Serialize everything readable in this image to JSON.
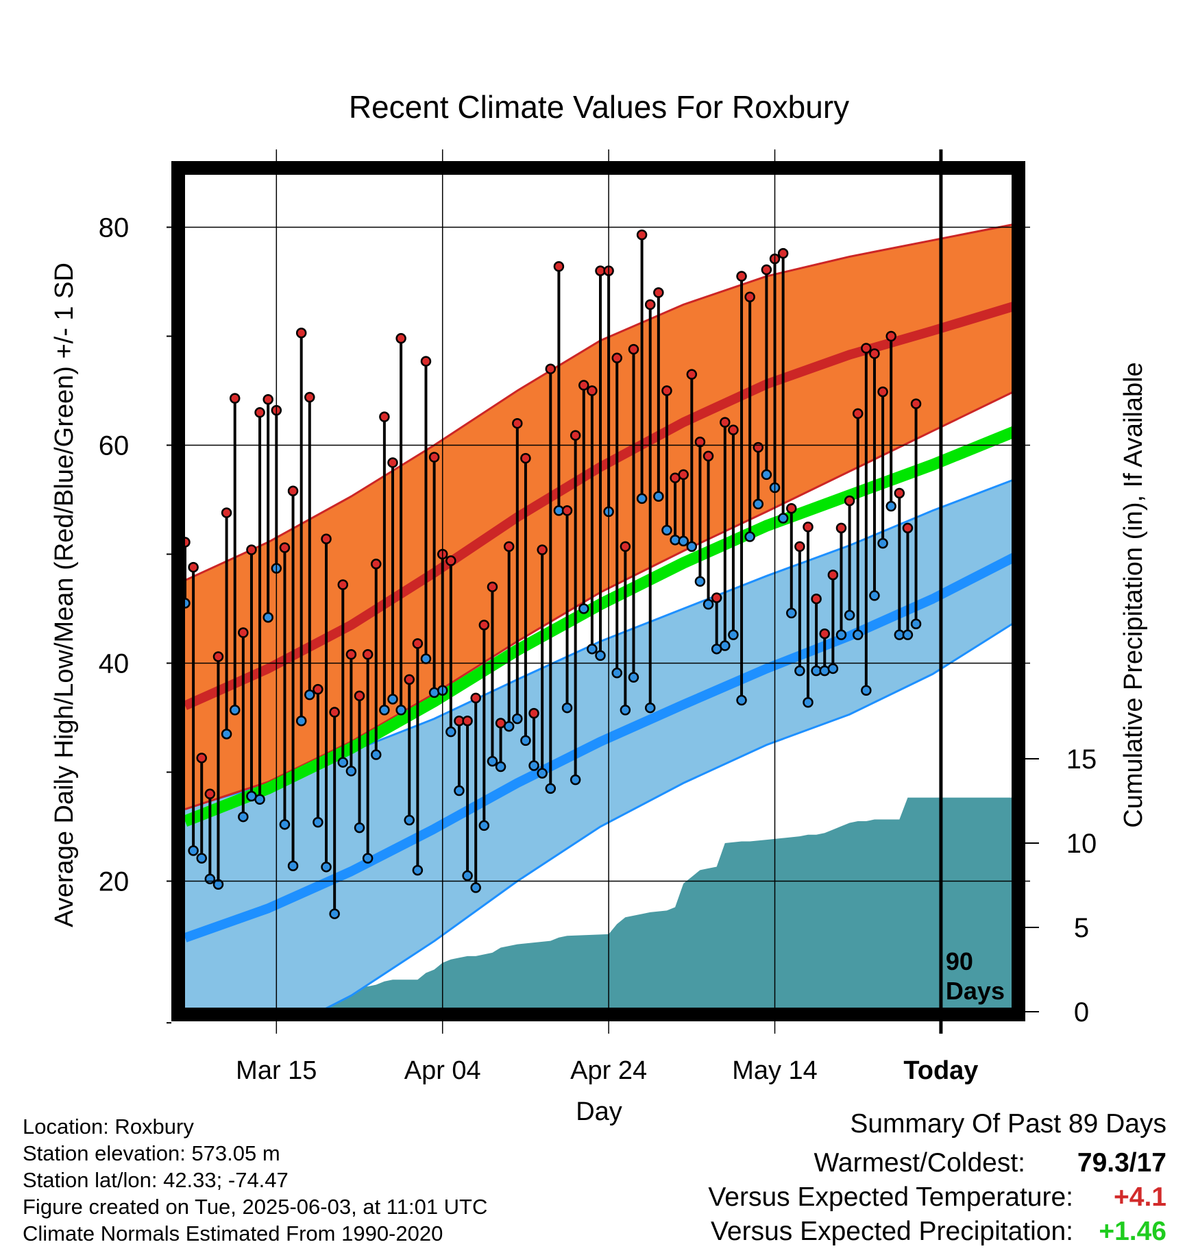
{
  "chart_data": {
    "type": "line",
    "title": "Recent Climate Values For Roxbury",
    "xlabel": "Day",
    "ylabel": "Average Daily High/Low/Mean (Red/Blue/Green) +/- 1 SD",
    "y2label": "Cumulative Precipitation (in), If Available",
    "xlim": [
      0,
      89
    ],
    "ylim": [
      7,
      85
    ],
    "y2lim": [
      0,
      15
    ],
    "x_ticks": [
      {
        "day": 11,
        "label": "Mar 15"
      },
      {
        "day": 31,
        "label": "Apr 04"
      },
      {
        "day": 51,
        "label": "Apr 24"
      },
      {
        "day": 71,
        "label": "May 14"
      },
      {
        "day": 91,
        "label": "Today",
        "bold": true
      }
    ],
    "y_ticks": [
      20,
      40,
      60,
      80
    ],
    "y2_ticks": [
      0,
      5,
      10,
      15
    ],
    "today_day": 91,
    "today_label": [
      "90",
      "Days"
    ],
    "normals": {
      "days": [
        0,
        10,
        20,
        30,
        40,
        50,
        60,
        70,
        80,
        90,
        100
      ],
      "high_mean": [
        36.1,
        39.5,
        43.5,
        48.3,
        53.4,
        58.0,
        62.1,
        65.6,
        68.3,
        70.5,
        72.8
      ],
      "high_plus_sd": [
        47.6,
        51.1,
        55.3,
        60.0,
        65.0,
        69.6,
        72.9,
        75.5,
        77.3,
        78.8,
        80.3
      ],
      "high_minus_sd": [
        26.6,
        29.1,
        32.8,
        37.2,
        42.0,
        46.5,
        50.3,
        53.9,
        57.6,
        61.3,
        65.0
      ],
      "low_mean": [
        14.8,
        17.5,
        20.9,
        24.8,
        29.0,
        32.8,
        36.2,
        39.5,
        42.5,
        45.9,
        49.8
      ],
      "low_plus_sd": [
        26.7,
        28.9,
        31.9,
        34.9,
        38.5,
        42.0,
        45.0,
        48.0,
        50.8,
        54.0,
        56.9
      ],
      "low_minus_sd": [
        2.2,
        5.6,
        9.5,
        14.5,
        20.0,
        25.0,
        29.0,
        32.5,
        35.3,
        39.0,
        43.8
      ],
      "avg_mean": [
        25.5,
        28.5,
        32.2,
        36.5,
        41.2,
        45.4,
        49.2,
        52.6,
        55.4,
        58.2,
        61.3
      ]
    },
    "observed": {
      "days": [
        0,
        1,
        2,
        3,
        4,
        5,
        6,
        7,
        8,
        9,
        10,
        11,
        12,
        13,
        14,
        15,
        16,
        17,
        18,
        19,
        20,
        21,
        22,
        23,
        24,
        25,
        26,
        27,
        28,
        29,
        30,
        31,
        32,
        33,
        34,
        35,
        36,
        37,
        38,
        39,
        40,
        41,
        42,
        43,
        44,
        45,
        46,
        47,
        48,
        49,
        50,
        51,
        52,
        53,
        54,
        55,
        56,
        57,
        58,
        59,
        60,
        61,
        62,
        63,
        64,
        65,
        66,
        67,
        68,
        69,
        70,
        71,
        72,
        73,
        74,
        75,
        76,
        77,
        78,
        79,
        80,
        81,
        82,
        83,
        84,
        85,
        86,
        87,
        88,
        89
      ],
      "high": [
        51.1,
        48.8,
        31.3,
        28.0,
        40.6,
        53.8,
        64.3,
        42.8,
        50.4,
        63.0,
        64.2,
        63.2,
        50.6,
        55.8,
        70.3,
        64.4,
        37.6,
        51.4,
        35.5,
        47.2,
        40.8,
        37.0,
        40.8,
        49.1,
        62.6,
        58.4,
        69.8,
        38.5,
        41.8,
        67.7,
        58.9,
        50.0,
        49.4,
        34.7,
        34.7,
        36.8,
        43.5,
        47.0,
        34.5,
        50.7,
        62.0,
        58.8,
        35.4,
        50.4,
        67.0,
        76.4,
        54.0,
        60.9,
        65.5,
        65.0,
        76.0,
        76.0,
        68.0,
        50.7,
        68.8,
        79.3,
        72.9,
        74.0,
        65.0,
        57.0,
        57.3,
        66.5,
        60.3,
        59.0,
        46.0,
        62.1,
        61.4,
        75.5,
        73.6,
        59.8,
        76.1,
        77.1,
        77.6,
        54.2,
        50.7,
        52.5,
        45.9,
        42.7,
        48.1,
        52.4,
        54.9,
        62.9,
        68.9,
        68.4,
        64.9,
        70.0,
        55.6,
        52.4,
        63.8,
        null
      ],
      "low": [
        45.5,
        22.8,
        22.1,
        20.2,
        19.7,
        33.5,
        35.7,
        25.9,
        27.8,
        27.5,
        44.2,
        48.7,
        25.2,
        21.4,
        34.7,
        37.1,
        25.4,
        21.3,
        17.0,
        30.9,
        30.1,
        24.9,
        22.1,
        31.6,
        35.7,
        36.7,
        35.7,
        25.6,
        21.0,
        40.4,
        37.3,
        37.5,
        33.7,
        28.3,
        20.5,
        19.4,
        25.1,
        31.0,
        30.5,
        34.2,
        34.9,
        32.9,
        30.6,
        29.9,
        28.5,
        54.0,
        35.9,
        29.3,
        45.0,
        41.3,
        40.7,
        53.9,
        39.1,
        35.7,
        38.7,
        55.1,
        35.9,
        55.3,
        52.2,
        51.3,
        51.2,
        50.7,
        47.5,
        45.4,
        41.3,
        41.6,
        42.6,
        36.6,
        51.6,
        54.6,
        57.3,
        56.1,
        53.3,
        44.6,
        39.3,
        36.4,
        39.3,
        39.3,
        39.5,
        42.6,
        44.4,
        42.6,
        37.5,
        46.2,
        51.0,
        54.4,
        42.6,
        42.6,
        43.6,
        null
      ]
    },
    "precipitation": {
      "days": [
        0,
        1,
        2,
        9.9,
        10.6,
        11.5,
        12.5,
        13.5,
        14.5,
        15.5,
        22,
        23,
        24,
        25,
        28,
        29,
        30,
        31,
        32,
        33,
        34,
        35,
        36,
        37,
        38,
        40,
        42,
        44,
        45,
        46,
        51,
        52,
        53,
        55,
        56,
        58,
        59,
        60,
        61,
        62,
        63,
        64,
        65,
        67,
        68,
        70,
        72,
        74,
        75,
        76,
        77,
        78,
        79,
        80,
        81,
        82,
        83,
        86,
        87,
        88,
        89
      ],
      "cumulative": [
        0.2,
        0.3,
        0.3,
        0.3,
        0.8,
        1.0,
        1.1,
        1.2,
        1.3,
        1.5,
        1.5,
        1.6,
        1.8,
        1.9,
        1.9,
        2.3,
        2.5,
        2.9,
        3.1,
        3.2,
        3.3,
        3.3,
        3.4,
        3.5,
        3.8,
        4.0,
        4.1,
        4.2,
        4.4,
        4.5,
        4.6,
        5.2,
        5.6,
        5.8,
        5.9,
        6.0,
        6.2,
        7.6,
        8.0,
        8.4,
        8.5,
        8.6,
        10.0,
        10.1,
        10.1,
        10.2,
        10.3,
        10.4,
        10.5,
        10.5,
        10.6,
        10.8,
        11.0,
        11.2,
        11.3,
        11.3,
        11.4,
        11.4,
        12.7,
        12.7,
        12.7
      ]
    }
  },
  "info": {
    "location": "Location: Roxbury",
    "elevation": "Station elevation: 573.05 m",
    "latlon": "Station lat/lon: 42.33; -74.47",
    "created": "Figure created on Tue, 2025-06-03, at 11:01 UTC",
    "normals_period": "Climate Normals Estimated From 1990-2020"
  },
  "summary": {
    "title": "Summary Of Past 89 Days",
    "warmest_label": "Warmest/Coldest:",
    "warmest_value": "79.3/17",
    "temp_label": "Versus Expected Temperature:",
    "temp_value": "+4.1",
    "precip_label": "Versus Expected Precipitation:",
    "precip_value": "+1.46"
  },
  "colors": {
    "high_band": "#f37a31",
    "high_line": "#cc2626",
    "low_band": "#86c2e6",
    "low_line": "#1e90ff",
    "avg_line": "#00e600",
    "precip_fill": "#4a9aa3",
    "high_dot": "#d92b2b",
    "low_dot": "#2f8fe0",
    "temp_value": "#d22b2b",
    "precip_value": "#1fcc1f"
  }
}
